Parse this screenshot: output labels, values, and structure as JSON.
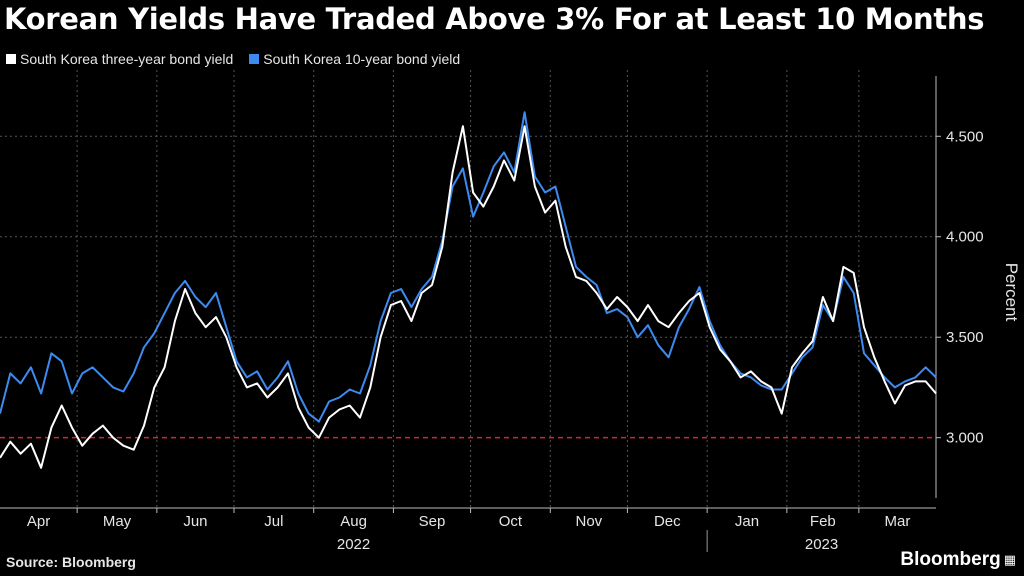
{
  "chart_data": {
    "type": "line",
    "title": "Korean Yields Have Traded Above 3% For at Least 10 Months",
    "ylabel": "Percent",
    "ylim": [
      2.65,
      4.8
    ],
    "yticks": [
      "3.000",
      "3.500",
      "4.000",
      "4.500"
    ],
    "ytick_values": [
      3.0,
      3.5,
      4.0,
      4.5
    ],
    "months": [
      "Apr",
      "May",
      "Jun",
      "Jul",
      "Aug",
      "Sep",
      "Oct",
      "Nov",
      "Dec",
      "Jan",
      "Feb",
      "Mar"
    ],
    "years": [
      "2022",
      "2023"
    ],
    "x_start": "2022-04-01",
    "x_end": "2023-03-31",
    "reference_line": {
      "value": 3.0,
      "color": "#d9262c"
    },
    "grid": true,
    "legend_position": "top-left",
    "series": [
      {
        "name": "South Korea three-year bond yield",
        "color": "#ffffff",
        "points": [
          [
            "2022-04-01",
            2.9
          ],
          [
            "2022-04-05",
            2.98
          ],
          [
            "2022-04-09",
            2.92
          ],
          [
            "2022-04-13",
            2.97
          ],
          [
            "2022-04-17",
            2.85
          ],
          [
            "2022-04-21",
            3.05
          ],
          [
            "2022-04-25",
            3.16
          ],
          [
            "2022-04-29",
            3.05
          ],
          [
            "2022-05-03",
            2.96
          ],
          [
            "2022-05-07",
            3.02
          ],
          [
            "2022-05-11",
            3.06
          ],
          [
            "2022-05-15",
            3.0
          ],
          [
            "2022-05-19",
            2.96
          ],
          [
            "2022-05-23",
            2.94
          ],
          [
            "2022-05-27",
            3.06
          ],
          [
            "2022-05-31",
            3.25
          ],
          [
            "2022-06-04",
            3.35
          ],
          [
            "2022-06-08",
            3.58
          ],
          [
            "2022-06-12",
            3.74
          ],
          [
            "2022-06-16",
            3.62
          ],
          [
            "2022-06-20",
            3.55
          ],
          [
            "2022-06-24",
            3.6
          ],
          [
            "2022-06-28",
            3.5
          ],
          [
            "2022-07-02",
            3.35
          ],
          [
            "2022-07-06",
            3.25
          ],
          [
            "2022-07-10",
            3.27
          ],
          [
            "2022-07-14",
            3.2
          ],
          [
            "2022-07-18",
            3.25
          ],
          [
            "2022-07-22",
            3.32
          ],
          [
            "2022-07-26",
            3.15
          ],
          [
            "2022-07-30",
            3.05
          ],
          [
            "2022-08-03",
            3.0
          ],
          [
            "2022-08-07",
            3.1
          ],
          [
            "2022-08-11",
            3.14
          ],
          [
            "2022-08-15",
            3.16
          ],
          [
            "2022-08-19",
            3.1
          ],
          [
            "2022-08-23",
            3.25
          ],
          [
            "2022-08-27",
            3.5
          ],
          [
            "2022-08-31",
            3.66
          ],
          [
            "2022-09-04",
            3.68
          ],
          [
            "2022-09-08",
            3.58
          ],
          [
            "2022-09-12",
            3.72
          ],
          [
            "2022-09-16",
            3.76
          ],
          [
            "2022-09-20",
            3.95
          ],
          [
            "2022-09-24",
            4.32
          ],
          [
            "2022-09-28",
            4.55
          ],
          [
            "2022-10-02",
            4.22
          ],
          [
            "2022-10-06",
            4.15
          ],
          [
            "2022-10-10",
            4.25
          ],
          [
            "2022-10-14",
            4.38
          ],
          [
            "2022-10-18",
            4.28
          ],
          [
            "2022-10-22",
            4.55
          ],
          [
            "2022-10-26",
            4.25
          ],
          [
            "2022-10-30",
            4.12
          ],
          [
            "2022-11-03",
            4.18
          ],
          [
            "2022-11-07",
            3.95
          ],
          [
            "2022-11-11",
            3.8
          ],
          [
            "2022-11-15",
            3.78
          ],
          [
            "2022-11-19",
            3.72
          ],
          [
            "2022-11-23",
            3.64
          ],
          [
            "2022-11-27",
            3.7
          ],
          [
            "2022-12-01",
            3.65
          ],
          [
            "2022-12-05",
            3.58
          ],
          [
            "2022-12-09",
            3.66
          ],
          [
            "2022-12-13",
            3.58
          ],
          [
            "2022-12-17",
            3.55
          ],
          [
            "2022-12-21",
            3.62
          ],
          [
            "2022-12-25",
            3.68
          ],
          [
            "2022-12-29",
            3.72
          ],
          [
            "2023-01-02",
            3.55
          ],
          [
            "2023-01-06",
            3.44
          ],
          [
            "2023-01-10",
            3.38
          ],
          [
            "2023-01-14",
            3.3
          ],
          [
            "2023-01-18",
            3.33
          ],
          [
            "2023-01-22",
            3.28
          ],
          [
            "2023-01-26",
            3.25
          ],
          [
            "2023-01-30",
            3.12
          ],
          [
            "2023-02-03",
            3.35
          ],
          [
            "2023-02-07",
            3.42
          ],
          [
            "2023-02-11",
            3.48
          ],
          [
            "2023-02-15",
            3.7
          ],
          [
            "2023-02-19",
            3.58
          ],
          [
            "2023-02-23",
            3.85
          ],
          [
            "2023-02-27",
            3.82
          ],
          [
            "2023-03-03",
            3.55
          ],
          [
            "2023-03-07",
            3.4
          ],
          [
            "2023-03-11",
            3.28
          ],
          [
            "2023-03-15",
            3.17
          ],
          [
            "2023-03-19",
            3.26
          ],
          [
            "2023-03-23",
            3.28
          ],
          [
            "2023-03-27",
            3.28
          ],
          [
            "2023-03-31",
            3.22
          ]
        ]
      },
      {
        "name": "South Korea 10-year bond yield",
        "color": "#3d8bf0",
        "points": [
          [
            "2022-04-01",
            3.12
          ],
          [
            "2022-04-05",
            3.32
          ],
          [
            "2022-04-09",
            3.27
          ],
          [
            "2022-04-13",
            3.35
          ],
          [
            "2022-04-17",
            3.22
          ],
          [
            "2022-04-21",
            3.42
          ],
          [
            "2022-04-25",
            3.38
          ],
          [
            "2022-04-29",
            3.22
          ],
          [
            "2022-05-03",
            3.32
          ],
          [
            "2022-05-07",
            3.35
          ],
          [
            "2022-05-11",
            3.3
          ],
          [
            "2022-05-15",
            3.25
          ],
          [
            "2022-05-19",
            3.23
          ],
          [
            "2022-05-23",
            3.32
          ],
          [
            "2022-05-27",
            3.45
          ],
          [
            "2022-05-31",
            3.52
          ],
          [
            "2022-06-04",
            3.62
          ],
          [
            "2022-06-08",
            3.72
          ],
          [
            "2022-06-12",
            3.78
          ],
          [
            "2022-06-16",
            3.7
          ],
          [
            "2022-06-20",
            3.65
          ],
          [
            "2022-06-24",
            3.72
          ],
          [
            "2022-06-28",
            3.55
          ],
          [
            "2022-07-02",
            3.38
          ],
          [
            "2022-07-06",
            3.3
          ],
          [
            "2022-07-10",
            3.33
          ],
          [
            "2022-07-14",
            3.24
          ],
          [
            "2022-07-18",
            3.3
          ],
          [
            "2022-07-22",
            3.38
          ],
          [
            "2022-07-26",
            3.22
          ],
          [
            "2022-07-30",
            3.12
          ],
          [
            "2022-08-03",
            3.08
          ],
          [
            "2022-08-07",
            3.18
          ],
          [
            "2022-08-11",
            3.2
          ],
          [
            "2022-08-15",
            3.24
          ],
          [
            "2022-08-19",
            3.22
          ],
          [
            "2022-08-23",
            3.36
          ],
          [
            "2022-08-27",
            3.58
          ],
          [
            "2022-08-31",
            3.72
          ],
          [
            "2022-09-04",
            3.74
          ],
          [
            "2022-09-08",
            3.65
          ],
          [
            "2022-09-12",
            3.74
          ],
          [
            "2022-09-16",
            3.8
          ],
          [
            "2022-09-20",
            3.98
          ],
          [
            "2022-09-24",
            4.25
          ],
          [
            "2022-09-28",
            4.34
          ],
          [
            "2022-10-02",
            4.1
          ],
          [
            "2022-10-06",
            4.22
          ],
          [
            "2022-10-10",
            4.35
          ],
          [
            "2022-10-14",
            4.42
          ],
          [
            "2022-10-18",
            4.32
          ],
          [
            "2022-10-22",
            4.62
          ],
          [
            "2022-10-26",
            4.3
          ],
          [
            "2022-10-30",
            4.22
          ],
          [
            "2022-11-03",
            4.25
          ],
          [
            "2022-11-07",
            4.05
          ],
          [
            "2022-11-11",
            3.85
          ],
          [
            "2022-11-15",
            3.8
          ],
          [
            "2022-11-19",
            3.76
          ],
          [
            "2022-11-23",
            3.62
          ],
          [
            "2022-11-27",
            3.64
          ],
          [
            "2022-12-01",
            3.6
          ],
          [
            "2022-12-05",
            3.5
          ],
          [
            "2022-12-09",
            3.56
          ],
          [
            "2022-12-13",
            3.46
          ],
          [
            "2022-12-17",
            3.4
          ],
          [
            "2022-12-21",
            3.55
          ],
          [
            "2022-12-25",
            3.64
          ],
          [
            "2022-12-29",
            3.75
          ],
          [
            "2023-01-02",
            3.58
          ],
          [
            "2023-01-06",
            3.46
          ],
          [
            "2023-01-10",
            3.38
          ],
          [
            "2023-01-14",
            3.32
          ],
          [
            "2023-01-18",
            3.3
          ],
          [
            "2023-01-22",
            3.26
          ],
          [
            "2023-01-26",
            3.24
          ],
          [
            "2023-01-30",
            3.24
          ],
          [
            "2023-02-03",
            3.32
          ],
          [
            "2023-02-07",
            3.4
          ],
          [
            "2023-02-11",
            3.45
          ],
          [
            "2023-02-15",
            3.66
          ],
          [
            "2023-02-19",
            3.58
          ],
          [
            "2023-02-23",
            3.8
          ],
          [
            "2023-02-27",
            3.72
          ],
          [
            "2023-03-03",
            3.42
          ],
          [
            "2023-03-07",
            3.36
          ],
          [
            "2023-03-11",
            3.3
          ],
          [
            "2023-03-15",
            3.25
          ],
          [
            "2023-03-19",
            3.28
          ],
          [
            "2023-03-23",
            3.3
          ],
          [
            "2023-03-27",
            3.35
          ],
          [
            "2023-03-31",
            3.3
          ]
        ]
      }
    ]
  },
  "footer": {
    "source": "Source: Bloomberg",
    "logo": "Bloomberg"
  }
}
